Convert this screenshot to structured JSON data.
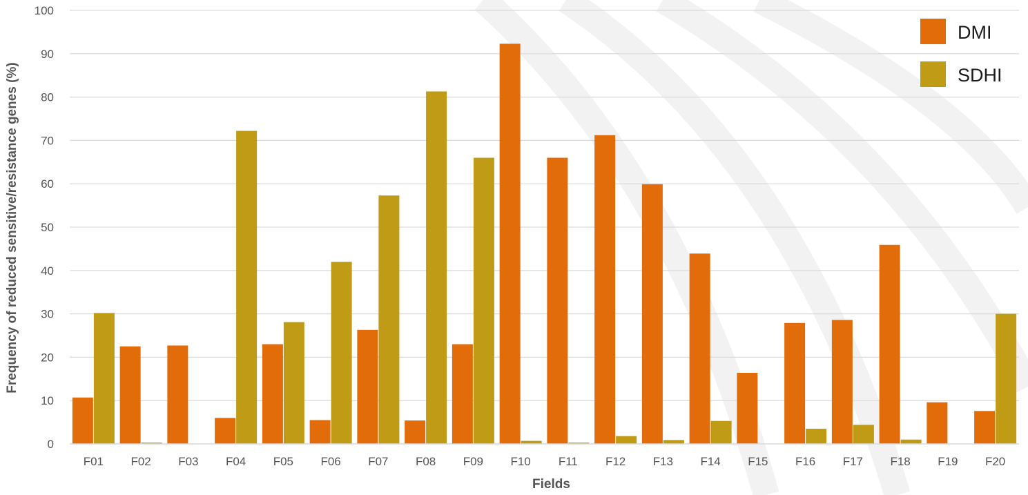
{
  "chart_data": {
    "type": "bar",
    "title": "",
    "xlabel": "Fields",
    "ylabel": "Frequency of reduced sensitive/resistance genes (%)",
    "ylim": [
      0,
      100
    ],
    "yticks": [
      0,
      10,
      20,
      30,
      40,
      50,
      60,
      70,
      80,
      90,
      100
    ],
    "grid": true,
    "legend_position": "top-right",
    "categories": [
      "F01",
      "F02",
      "F03",
      "F04",
      "F05",
      "F06",
      "F07",
      "F08",
      "F09",
      "F10",
      "F11",
      "F12",
      "F13",
      "F14",
      "F15",
      "F16",
      "F17",
      "F18",
      "F19",
      "F20"
    ],
    "series": [
      {
        "name": "DMI",
        "color": "#e36c0a",
        "values": [
          10.7,
          22.5,
          22.7,
          6.0,
          23.0,
          5.5,
          26.3,
          5.4,
          23.0,
          92.3,
          66.0,
          71.2,
          59.9,
          43.9,
          16.4,
          27.9,
          28.6,
          45.9,
          9.6,
          7.6
        ]
      },
      {
        "name": "SDHI",
        "color": "#c09b15",
        "values": [
          30.2,
          0.3,
          0.0,
          72.2,
          28.1,
          42.0,
          57.3,
          81.3,
          66.0,
          0.7,
          0.3,
          1.8,
          0.9,
          5.3,
          0.0,
          3.5,
          4.4,
          1.0,
          0.0,
          30.0
        ]
      }
    ]
  }
}
